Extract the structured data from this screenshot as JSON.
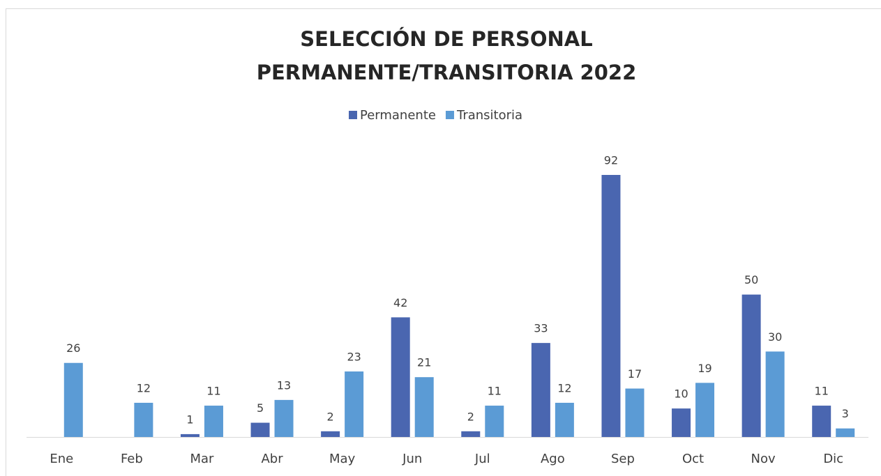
{
  "chart_data": {
    "type": "bar",
    "title": [
      "SELECCIÓN DE PERSONAL",
      "PERMANENTE/TRANSITORIA 2022"
    ],
    "categories": [
      "Ene",
      "Feb",
      "Mar",
      "Abr",
      "May",
      "Jun",
      "Jul",
      "Ago",
      "Sep",
      "Oct",
      "Nov",
      "Dic"
    ],
    "series": [
      {
        "name": "Permanente",
        "color": "#4a66b0",
        "values": [
          null,
          null,
          1,
          5,
          2,
          42,
          2,
          33,
          92,
          10,
          50,
          11
        ]
      },
      {
        "name": "Transitoria",
        "color": "#5b9bd5",
        "values": [
          26,
          12,
          11,
          13,
          23,
          21,
          11,
          12,
          17,
          19,
          30,
          3
        ]
      }
    ]
  }
}
